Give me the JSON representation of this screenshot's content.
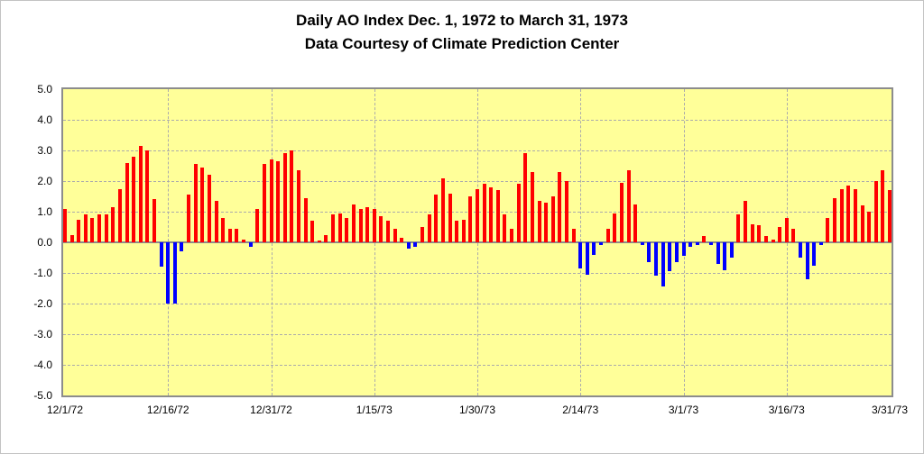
{
  "title": "Daily AO Index Dec. 1, 1972 to March 31, 1973",
  "subtitle": "Data Courtesy of Climate Prediction Center",
  "chart_data": {
    "type": "bar",
    "title": "Daily AO Index Dec. 1, 1972 to March 31, 1973",
    "subtitle": "Data Courtesy of Climate Prediction Center",
    "xlabel": "",
    "ylabel": "",
    "ylim": [
      -5.0,
      5.0
    ],
    "y_tick_step": 1.0,
    "y_tick_labels": [
      "5.0",
      "4.0",
      "3.0",
      "2.0",
      "1.0",
      "0.0",
      "-1.0",
      "-2.0",
      "-3.0",
      "-4.0",
      "-5.0"
    ],
    "x_ticks": [
      {
        "label": "12/1/72",
        "index": 0
      },
      {
        "label": "12/16/72",
        "index": 15
      },
      {
        "label": "12/31/72",
        "index": 30
      },
      {
        "label": "1/15/73",
        "index": 45
      },
      {
        "label": "1/30/73",
        "index": 60
      },
      {
        "label": "2/14/73",
        "index": 75
      },
      {
        "label": "3/1/73",
        "index": 90
      },
      {
        "label": "3/16/73",
        "index": 105
      },
      {
        "label": "3/31/73",
        "index": 120
      }
    ],
    "series_name": "Daily AO Index",
    "values": [
      1.1,
      0.25,
      0.75,
      0.9,
      0.8,
      0.9,
      0.9,
      1.15,
      1.75,
      2.6,
      2.8,
      3.15,
      3.0,
      1.4,
      -0.8,
      -2.0,
      -2.0,
      -0.3,
      1.55,
      2.55,
      2.45,
      2.2,
      1.35,
      0.8,
      0.45,
      0.45,
      0.1,
      -0.15,
      1.1,
      2.55,
      2.7,
      2.65,
      2.9,
      3.0,
      2.35,
      1.45,
      0.7,
      0.05,
      0.25,
      0.9,
      0.95,
      0.8,
      1.25,
      1.1,
      1.15,
      1.1,
      0.85,
      0.7,
      0.45,
      0.15,
      -0.2,
      -0.15,
      0.5,
      0.9,
      1.55,
      2.1,
      1.6,
      0.7,
      0.75,
      1.5,
      1.75,
      1.9,
      1.8,
      1.7,
      0.9,
      0.45,
      1.9,
      2.9,
      2.3,
      1.35,
      1.3,
      1.5,
      2.3,
      2.0,
      0.45,
      -0.85,
      -1.05,
      -0.4,
      -0.1,
      0.45,
      0.95,
      1.95,
      2.35,
      1.25,
      -0.1,
      -0.65,
      -1.1,
      -1.45,
      -0.95,
      -0.65,
      -0.45,
      -0.15,
      -0.1,
      0.2,
      -0.1,
      -0.7,
      -0.9,
      -0.5,
      0.9,
      1.35,
      0.6,
      0.55,
      0.2,
      0.1,
      0.5,
      0.8,
      0.45,
      -0.5,
      -1.2,
      -0.75,
      -0.1,
      0.8,
      1.45,
      1.75,
      1.85,
      1.75,
      1.2,
      1.0,
      2.0,
      2.35,
      1.7
    ],
    "positive_color": "#ff0000",
    "negative_color": "#0000ff",
    "plot_background": "#ffff99",
    "grid": {
      "horizontal": true,
      "vertical_at_ticks": true,
      "style": "dashed"
    },
    "legend": "none"
  }
}
